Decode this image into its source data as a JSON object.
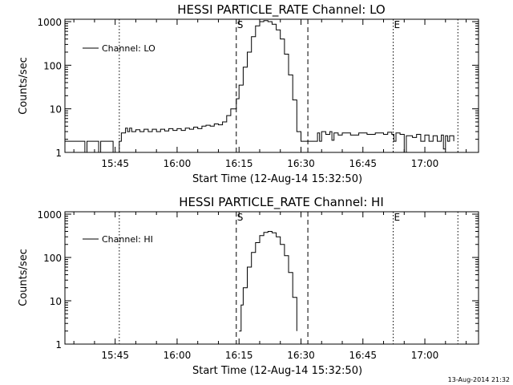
{
  "footer_timestamp": "13-Aug-2014 21:32",
  "chart_data": [
    {
      "type": "line",
      "title": "HESSI PARTICLE_RATE Channel: LO",
      "xlabel": "Start Time (12-Aug-14 15:32:50)",
      "ylabel": "Counts/sec",
      "yscale": "log",
      "xlim": [
        "15:32:50",
        "17:13:00"
      ],
      "ylim": [
        1,
        1000
      ],
      "x_ticks": [
        "15:45",
        "16:00",
        "16:15",
        "16:30",
        "16:45",
        "17:00"
      ],
      "y_ticks": [
        "1",
        "10",
        "100",
        "1000"
      ],
      "legend": {
        "label": "Channel: LO",
        "placement": "top-left"
      },
      "markers": [
        {
          "label": "S",
          "time": "16:14:20",
          "style": "dashed"
        },
        {
          "label": "",
          "time": "16:31:40",
          "style": "dashed"
        },
        {
          "label": "",
          "time": "15:46:00",
          "style": "dotted"
        },
        {
          "label": "E",
          "time": "16:52:20",
          "style": "dotted"
        },
        {
          "label": "",
          "time": "17:08:00",
          "style": "dotted"
        }
      ],
      "series": [
        {
          "name": "Channel: LO",
          "points": [
            [
              "15:32:50",
              1.8
            ],
            [
              "15:37:00",
              1.8
            ],
            [
              "15:37:40",
              1.0
            ],
            [
              "15:38:10",
              1.8
            ],
            [
              "15:40:30",
              1.8
            ],
            [
              "15:41:00",
              1.0
            ],
            [
              "15:41:30",
              1.8
            ],
            [
              "15:44:00",
              1.8
            ],
            [
              "15:44:30",
              1.0
            ],
            [
              "15:45:30",
              1.0
            ],
            [
              "15:46:00",
              1.8
            ],
            [
              "15:46:30",
              2.8
            ],
            [
              "15:47:00",
              2.8
            ],
            [
              "15:47:30",
              3.6
            ],
            [
              "15:48:00",
              3.0
            ],
            [
              "15:48:30",
              3.6
            ],
            [
              "15:49:00",
              3.0
            ],
            [
              "15:50:00",
              3.3
            ],
            [
              "15:51:00",
              3.0
            ],
            [
              "15:52:00",
              3.4
            ],
            [
              "15:53:00",
              3.0
            ],
            [
              "15:54:00",
              3.4
            ],
            [
              "15:55:00",
              3.0
            ],
            [
              "15:56:00",
              3.4
            ],
            [
              "15:57:00",
              3.1
            ],
            [
              "15:58:00",
              3.5
            ],
            [
              "15:59:00",
              3.2
            ],
            [
              "16:00:00",
              3.5
            ],
            [
              "16:01:00",
              3.2
            ],
            [
              "16:02:00",
              3.6
            ],
            [
              "16:03:00",
              3.4
            ],
            [
              "16:04:00",
              3.8
            ],
            [
              "16:05:00",
              3.5
            ],
            [
              "16:06:00",
              4.0
            ],
            [
              "16:07:00",
              4.2
            ],
            [
              "16:08:00",
              4.0
            ],
            [
              "16:09:00",
              4.5
            ],
            [
              "16:10:00",
              4.3
            ],
            [
              "16:11:00",
              5.0
            ],
            [
              "16:12:00",
              7.0
            ],
            [
              "16:13:00",
              10.0
            ],
            [
              "16:14:20",
              17.0
            ],
            [
              "16:15:00",
              35.0
            ],
            [
              "16:16:00",
              90.0
            ],
            [
              "16:17:00",
              200.0
            ],
            [
              "16:18:00",
              450.0
            ],
            [
              "16:19:00",
              800.0
            ],
            [
              "16:20:00",
              1000.0
            ],
            [
              "16:21:00",
              1050.0
            ],
            [
              "16:22:00",
              1000.0
            ],
            [
              "16:23:00",
              870.0
            ],
            [
              "16:24:00",
              650.0
            ],
            [
              "16:25:00",
              400.0
            ],
            [
              "16:26:00",
              180.0
            ],
            [
              "16:27:00",
              60.0
            ],
            [
              "16:28:00",
              16.0
            ],
            [
              "16:29:00",
              3.0
            ],
            [
              "16:30:00",
              1.8
            ],
            [
              "16:33:00",
              1.8
            ],
            [
              "16:34:00",
              2.8
            ],
            [
              "16:34:30",
              1.8
            ],
            [
              "16:35:00",
              3.0
            ],
            [
              "16:36:00",
              2.6
            ],
            [
              "16:37:00",
              3.0
            ],
            [
              "16:37:30",
              1.9
            ],
            [
              "16:38:00",
              2.8
            ],
            [
              "16:39:00",
              2.5
            ],
            [
              "16:40:00",
              2.8
            ],
            [
              "16:42:00",
              2.5
            ],
            [
              "16:44:00",
              2.8
            ],
            [
              "16:46:00",
              2.6
            ],
            [
              "16:48:00",
              2.8
            ],
            [
              "16:50:00",
              2.6
            ],
            [
              "16:51:00",
              2.9
            ],
            [
              "16:52:00",
              2.6
            ],
            [
              "16:52:30",
              1.8
            ],
            [
              "16:53:00",
              2.8
            ],
            [
              "16:54:00",
              2.6
            ],
            [
              "16:55:00",
              1.0
            ],
            [
              "16:55:30",
              2.4
            ],
            [
              "16:57:00",
              2.2
            ],
            [
              "16:58:00",
              2.6
            ],
            [
              "16:59:00",
              1.8
            ],
            [
              "17:00:00",
              2.5
            ],
            [
              "17:01:00",
              1.8
            ],
            [
              "17:02:00",
              2.4
            ],
            [
              "17:03:00",
              1.8
            ],
            [
              "17:04:00",
              2.5
            ],
            [
              "17:04:30",
              1.2
            ],
            [
              "17:05:00",
              2.4
            ],
            [
              "17:05:30",
              1.8
            ],
            [
              "17:06:00",
              2.4
            ],
            [
              "17:07:00",
              1.8
            ]
          ]
        }
      ]
    },
    {
      "type": "line",
      "title": "HESSI PARTICLE_RATE Channel: HI",
      "xlabel": "Start Time (12-Aug-14 15:32:50)",
      "ylabel": "Counts/sec",
      "yscale": "log",
      "xlim": [
        "15:32:50",
        "17:13:00"
      ],
      "ylim": [
        1,
        1000
      ],
      "x_ticks": [
        "15:45",
        "16:00",
        "16:15",
        "16:30",
        "16:45",
        "17:00"
      ],
      "y_ticks": [
        "1",
        "10",
        "100",
        "1000"
      ],
      "legend": {
        "label": "Channel: HI",
        "placement": "top-left"
      },
      "markers": [
        {
          "label": "S",
          "time": "16:14:20",
          "style": "dashed"
        },
        {
          "label": "",
          "time": "16:31:40",
          "style": "dashed"
        },
        {
          "label": "",
          "time": "15:46:00",
          "style": "dotted"
        },
        {
          "label": "E",
          "time": "16:52:20",
          "style": "dotted"
        },
        {
          "label": "",
          "time": "17:08:00",
          "style": "dotted"
        }
      ],
      "series": [
        {
          "name": "Channel: HI",
          "points": [
            [
              "16:15:00",
              2.0
            ],
            [
              "16:15:30",
              8.0
            ],
            [
              "16:16:00",
              20.0
            ],
            [
              "16:17:00",
              60.0
            ],
            [
              "16:18:00",
              130.0
            ],
            [
              "16:19:00",
              220.0
            ],
            [
              "16:20:00",
              320.0
            ],
            [
              "16:21:00",
              380.0
            ],
            [
              "16:22:00",
              400.0
            ],
            [
              "16:23:00",
              370.0
            ],
            [
              "16:24:00",
              300.0
            ],
            [
              "16:25:00",
              200.0
            ],
            [
              "16:26:00",
              110.0
            ],
            [
              "16:27:00",
              45.0
            ],
            [
              "16:28:00",
              12.0
            ],
            [
              "16:29:00",
              2.0
            ]
          ]
        }
      ]
    }
  ]
}
